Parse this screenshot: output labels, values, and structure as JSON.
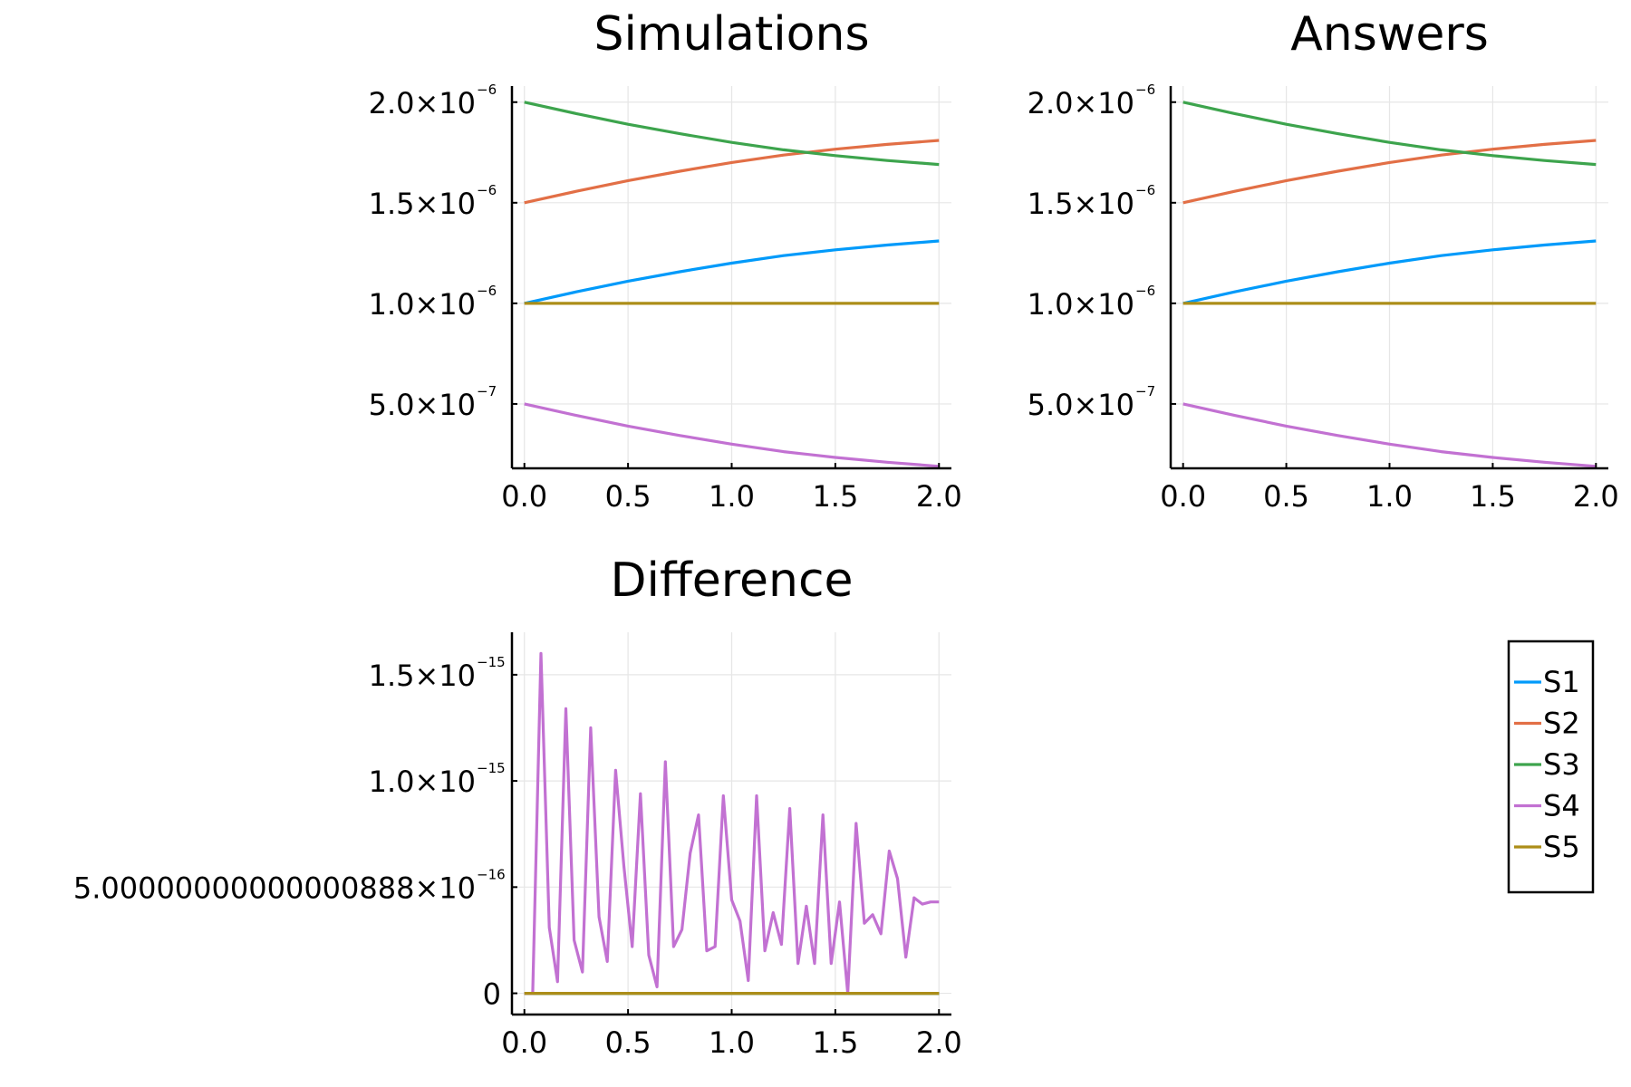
{
  "chart_data": [
    {
      "type": "line",
      "title": "Simulations",
      "xlabel": "",
      "ylabel": "",
      "xlim": [
        -0.06,
        2.06
      ],
      "ylim": [
        1.8e-07,
        2.08e-06
      ],
      "grid": true,
      "xticks": [
        {
          "value": 0.0,
          "label": "0.0"
        },
        {
          "value": 0.5,
          "label": "0.5"
        },
        {
          "value": 1.0,
          "label": "1.0"
        },
        {
          "value": 1.5,
          "label": "1.5"
        },
        {
          "value": 2.0,
          "label": "2.0"
        }
      ],
      "yticks": [
        {
          "value": 5e-07,
          "mantissa": "5.0×10",
          "exponent": "−7"
        },
        {
          "value": 1e-06,
          "mantissa": "1.0×10",
          "exponent": "−6"
        },
        {
          "value": 1.5e-06,
          "mantissa": "1.5×10",
          "exponent": "−6"
        },
        {
          "value": 2e-06,
          "mantissa": "2.0×10",
          "exponent": "−6"
        }
      ],
      "x": [
        0.0,
        0.25,
        0.5,
        0.75,
        1.0,
        1.25,
        1.5,
        1.75,
        2.0
      ],
      "series": [
        {
          "name": "S1",
          "color": "#009AFA",
          "values": [
            1e-06,
            1.057e-06,
            1.11e-06,
            1.157e-06,
            1.2e-06,
            1.237e-06,
            1.266e-06,
            1.29e-06,
            1.31e-06
          ]
        },
        {
          "name": "S2",
          "color": "#E26F46",
          "values": [
            1.5e-06,
            1.557e-06,
            1.61e-06,
            1.657e-06,
            1.7e-06,
            1.737e-06,
            1.766e-06,
            1.79e-06,
            1.81e-06
          ]
        },
        {
          "name": "S3",
          "color": "#3DA44D",
          "values": [
            2e-06,
            1.943e-06,
            1.89e-06,
            1.843e-06,
            1.8e-06,
            1.763e-06,
            1.734e-06,
            1.71e-06,
            1.69e-06
          ]
        },
        {
          "name": "S4",
          "color": "#C271D2",
          "values": [
            5e-07,
            4.43e-07,
            3.9e-07,
            3.43e-07,
            3e-07,
            2.63e-07,
            2.34e-07,
            2.1e-07,
            1.9e-07
          ]
        },
        {
          "name": "S5",
          "color": "#AC8D18",
          "values": [
            1e-06,
            1e-06,
            1e-06,
            1e-06,
            1e-06,
            1e-06,
            1e-06,
            1e-06,
            1e-06
          ]
        }
      ]
    },
    {
      "type": "line",
      "title": "Answers",
      "xlabel": "",
      "ylabel": "",
      "xlim": [
        -0.06,
        2.06
      ],
      "ylim": [
        1.8e-07,
        2.08e-06
      ],
      "grid": true,
      "xticks": [
        {
          "value": 0.0,
          "label": "0.0"
        },
        {
          "value": 0.5,
          "label": "0.5"
        },
        {
          "value": 1.0,
          "label": "1.0"
        },
        {
          "value": 1.5,
          "label": "1.5"
        },
        {
          "value": 2.0,
          "label": "2.0"
        }
      ],
      "yticks": [
        {
          "value": 5e-07,
          "mantissa": "5.0×10",
          "exponent": "−7"
        },
        {
          "value": 1e-06,
          "mantissa": "1.0×10",
          "exponent": "−6"
        },
        {
          "value": 1.5e-06,
          "mantissa": "1.5×10",
          "exponent": "−6"
        },
        {
          "value": 2e-06,
          "mantissa": "2.0×10",
          "exponent": "−6"
        }
      ],
      "x": [
        0.0,
        0.25,
        0.5,
        0.75,
        1.0,
        1.25,
        1.5,
        1.75,
        2.0
      ],
      "series": [
        {
          "name": "S1",
          "color": "#009AFA",
          "values": [
            1e-06,
            1.057e-06,
            1.11e-06,
            1.157e-06,
            1.2e-06,
            1.237e-06,
            1.266e-06,
            1.29e-06,
            1.31e-06
          ]
        },
        {
          "name": "S2",
          "color": "#E26F46",
          "values": [
            1.5e-06,
            1.557e-06,
            1.61e-06,
            1.657e-06,
            1.7e-06,
            1.737e-06,
            1.766e-06,
            1.79e-06,
            1.81e-06
          ]
        },
        {
          "name": "S3",
          "color": "#3DA44D",
          "values": [
            2e-06,
            1.943e-06,
            1.89e-06,
            1.843e-06,
            1.8e-06,
            1.763e-06,
            1.734e-06,
            1.71e-06,
            1.69e-06
          ]
        },
        {
          "name": "S4",
          "color": "#C271D2",
          "values": [
            5e-07,
            4.43e-07,
            3.9e-07,
            3.43e-07,
            3e-07,
            2.63e-07,
            2.34e-07,
            2.1e-07,
            1.9e-07
          ]
        },
        {
          "name": "S5",
          "color": "#AC8D18",
          "values": [
            1e-06,
            1e-06,
            1e-06,
            1e-06,
            1e-06,
            1e-06,
            1e-06,
            1e-06,
            1e-06
          ]
        }
      ]
    },
    {
      "type": "line",
      "title": "Difference",
      "xlabel": "",
      "ylabel": "",
      "xlim": [
        -0.06,
        2.06
      ],
      "ylim": [
        -1e-16,
        1.7e-15
      ],
      "grid": true,
      "xticks": [
        {
          "value": 0.0,
          "label": "0.0"
        },
        {
          "value": 0.5,
          "label": "0.5"
        },
        {
          "value": 1.0,
          "label": "1.0"
        },
        {
          "value": 1.5,
          "label": "1.5"
        },
        {
          "value": 2.0,
          "label": "2.0"
        }
      ],
      "yticks": [
        {
          "value": 0,
          "mantissa": "0",
          "exponent": ""
        },
        {
          "value": 5e-16,
          "mantissa": "5.00000000000000888×10",
          "exponent": "−16"
        },
        {
          "value": 1e-15,
          "mantissa": "1.0×10",
          "exponent": "−15"
        },
        {
          "value": 1.5e-15,
          "mantissa": "1.5×10",
          "exponent": "−15"
        }
      ],
      "x": [
        0.0,
        0.04,
        0.08,
        0.12,
        0.16,
        0.2,
        0.24,
        0.28,
        0.32,
        0.36,
        0.4,
        0.44,
        0.48,
        0.52,
        0.56,
        0.6,
        0.64,
        0.68,
        0.72,
        0.76,
        0.8,
        0.84,
        0.88,
        0.92,
        0.96,
        1.0,
        1.04,
        1.08,
        1.12,
        1.16,
        1.2,
        1.24,
        1.28,
        1.32,
        1.36,
        1.4,
        1.44,
        1.48,
        1.52,
        1.56,
        1.6,
        1.64,
        1.68,
        1.72,
        1.76,
        1.8,
        1.84,
        1.88,
        1.92,
        1.96,
        2.0
      ],
      "series": [
        {
          "name": "S1",
          "color": "#009AFA",
          "values": [
            0,
            0,
            0,
            0,
            0,
            0,
            0,
            0,
            0,
            0,
            0,
            0,
            0,
            0,
            0,
            0,
            0,
            0,
            0,
            0,
            0,
            0,
            0,
            0,
            0,
            0,
            0,
            0,
            0,
            0,
            0,
            0,
            0,
            0,
            0,
            0,
            0,
            0,
            0,
            0,
            0,
            0,
            0,
            0,
            0,
            0,
            0,
            0,
            0,
            0,
            0
          ]
        },
        {
          "name": "S2",
          "color": "#E26F46",
          "values": [
            0,
            0,
            0,
            0,
            0,
            0,
            0,
            0,
            0,
            0,
            0,
            0,
            0,
            0,
            0,
            0,
            0,
            0,
            0,
            0,
            0,
            0,
            0,
            0,
            0,
            0,
            0,
            0,
            0,
            0,
            0,
            0,
            0,
            0,
            0,
            0,
            0,
            0,
            0,
            0,
            0,
            0,
            0,
            0,
            0,
            0,
            0,
            0,
            0,
            0,
            0
          ]
        },
        {
          "name": "S3",
          "color": "#3DA44D",
          "values": [
            0,
            0,
            0,
            0,
            0,
            0,
            0,
            0,
            0,
            0,
            0,
            0,
            0,
            0,
            0,
            0,
            0,
            0,
            0,
            0,
            0,
            0,
            0,
            0,
            0,
            0,
            0,
            0,
            0,
            0,
            0,
            0,
            0,
            0,
            0,
            0,
            0,
            0,
            0,
            0,
            0,
            0,
            0,
            0,
            0,
            0,
            0,
            0,
            0,
            0,
            0
          ]
        },
        {
          "name": "S4",
          "color": "#C271D2",
          "values": [
            0,
            0,
            1.6e-15,
            3.1e-16,
            5.5e-17,
            1.34e-15,
            2.5e-16,
            1e-16,
            1.25e-15,
            3.6e-16,
            1.5e-16,
            1.05e-15,
            6e-16,
            2.2e-16,
            9.4e-16,
            1.8e-16,
            3e-17,
            1.09e-15,
            2.2e-16,
            3e-16,
            6.6e-16,
            8.4e-16,
            2e-16,
            2.2e-16,
            9.3e-16,
            4.4e-16,
            3.4e-16,
            6e-17,
            9.3e-16,
            2e-16,
            3.8e-16,
            2.3e-16,
            8.7e-16,
            1.4e-16,
            4.1e-16,
            1.4e-16,
            8.4e-16,
            1.4e-16,
            4.3e-16,
            0,
            8e-16,
            3.3e-16,
            3.7e-16,
            2.8e-16,
            6.7e-16,
            5.4e-16,
            1.7e-16,
            4.5e-16,
            4.2e-16,
            4.3e-16,
            4.3e-16
          ]
        },
        {
          "name": "S5",
          "color": "#AC8D18",
          "values": [
            0,
            0,
            0,
            0,
            0,
            0,
            0,
            0,
            0,
            0,
            0,
            0,
            0,
            0,
            0,
            0,
            0,
            0,
            0,
            0,
            0,
            0,
            0,
            0,
            0,
            0,
            0,
            0,
            0,
            0,
            0,
            0,
            0,
            0,
            0,
            0,
            0,
            0,
            0,
            0,
            0,
            0,
            0,
            0,
            0,
            0,
            0,
            0,
            0,
            0,
            0
          ]
        }
      ]
    }
  ],
  "legend": {
    "placement": "lower-right panel",
    "entries": [
      {
        "label": "S1",
        "color": "#009AFA"
      },
      {
        "label": "S2",
        "color": "#E26F46"
      },
      {
        "label": "S3",
        "color": "#3DA44D"
      },
      {
        "label": "S4",
        "color": "#C271D2"
      },
      {
        "label": "S5",
        "color": "#AC8D18"
      }
    ]
  }
}
